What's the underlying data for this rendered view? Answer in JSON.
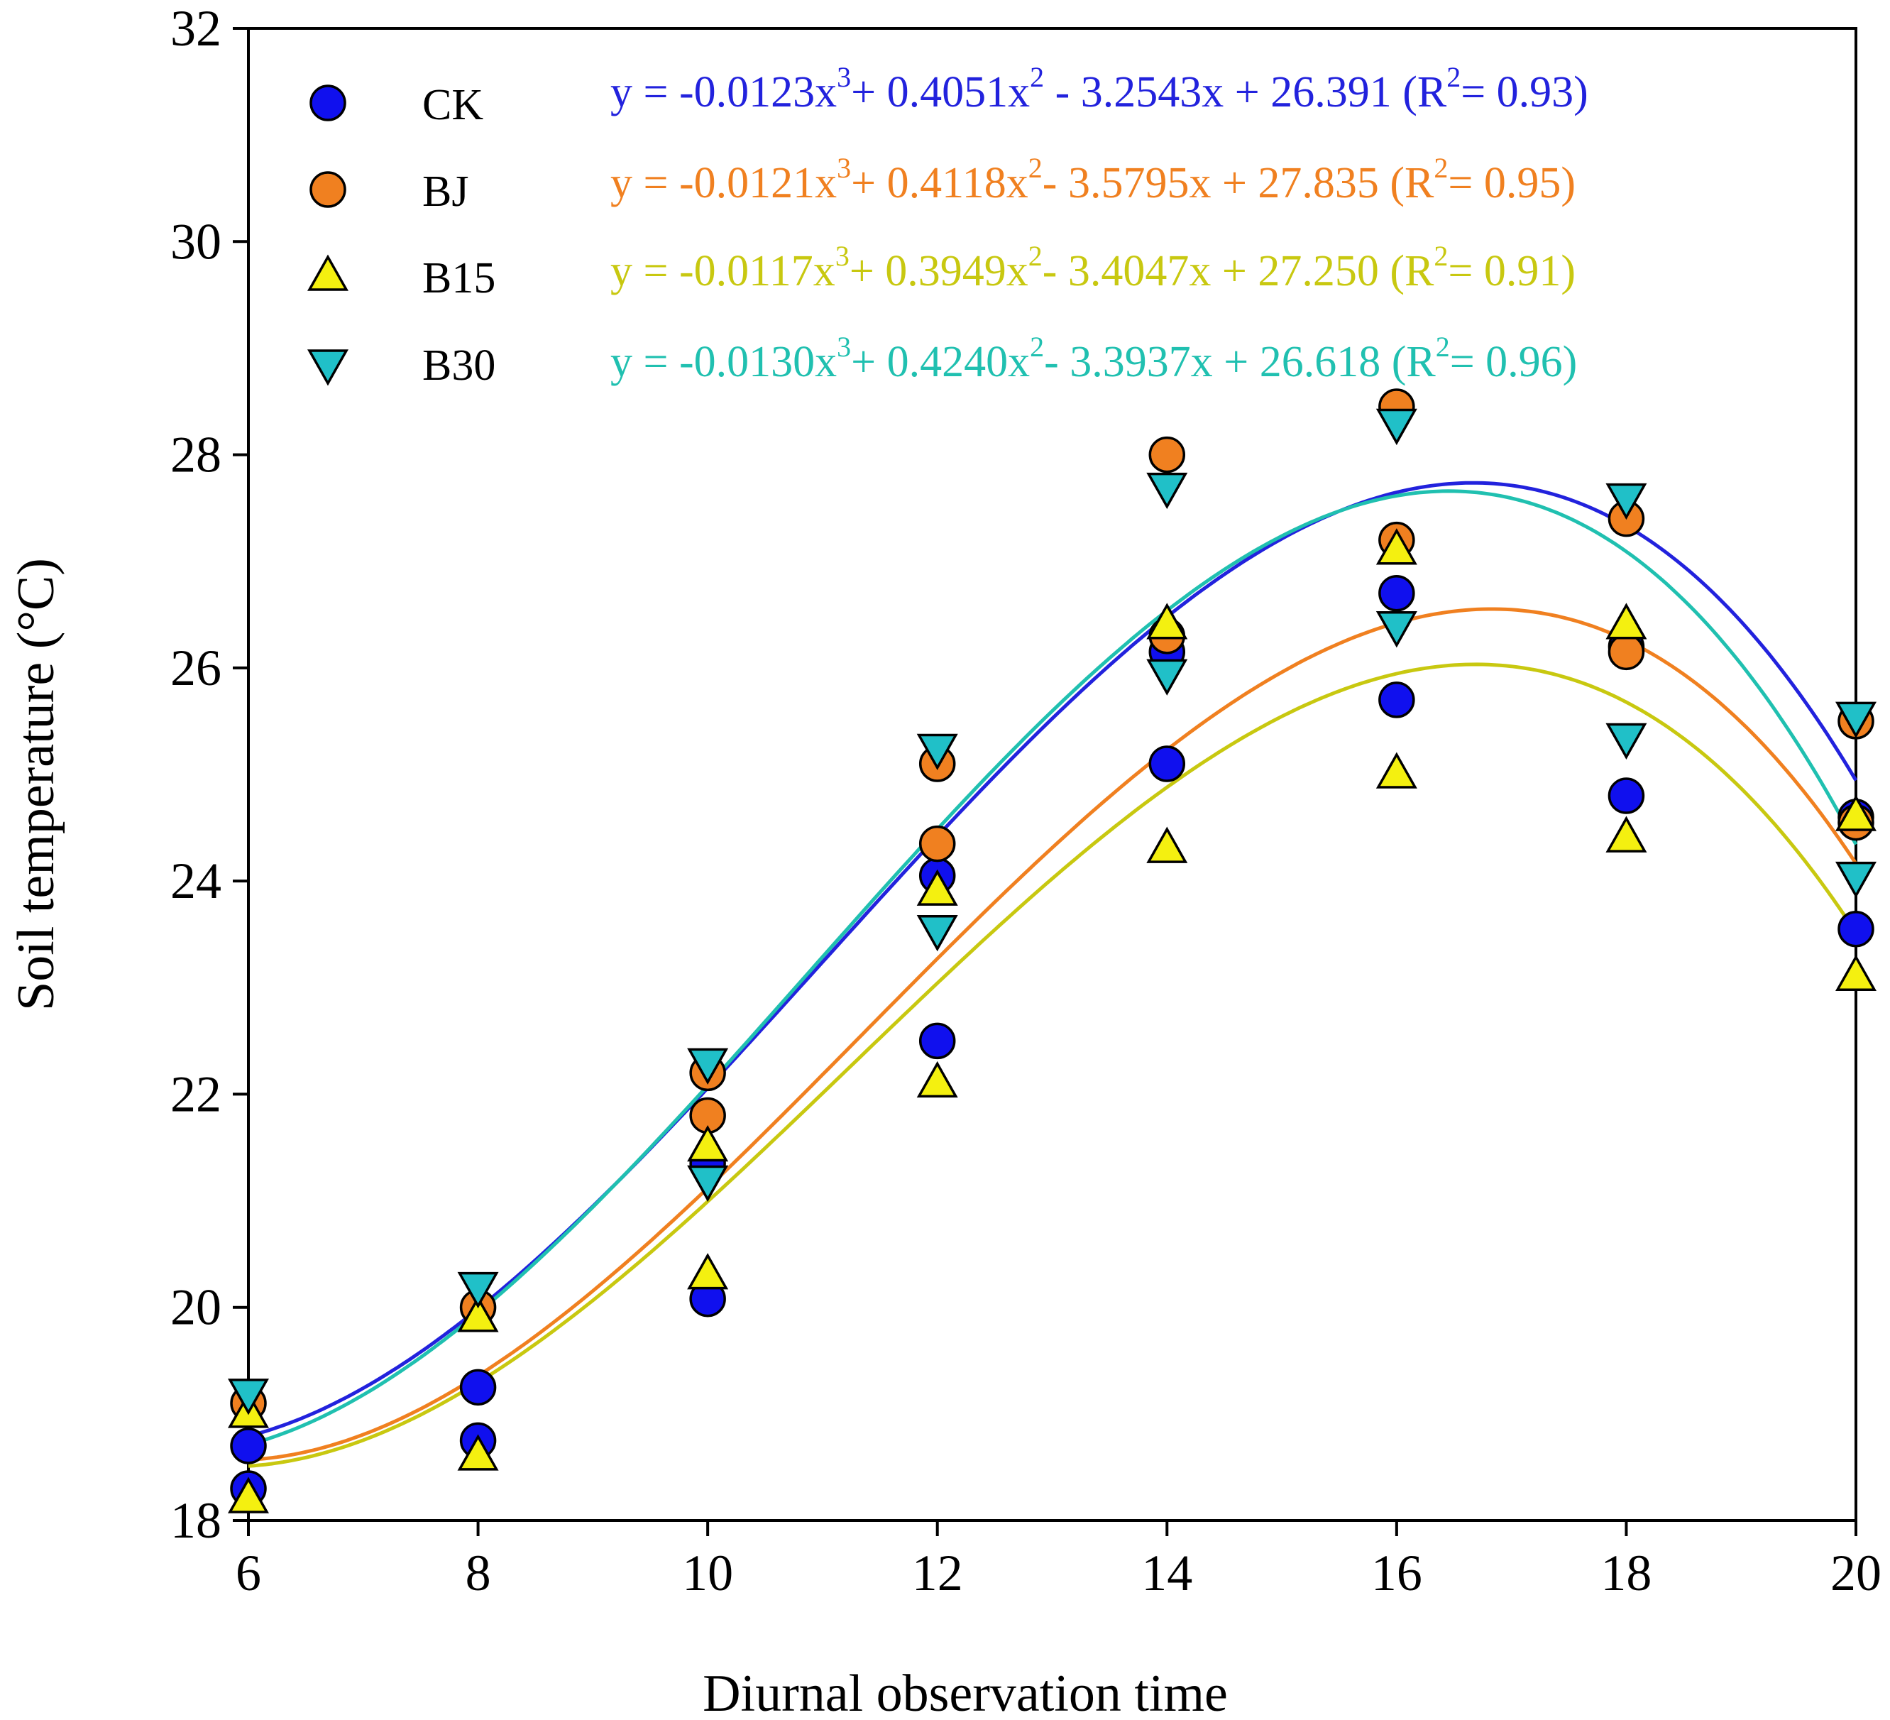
{
  "chart_data": {
    "type": "scatter",
    "title": "",
    "xlabel": "Diurnal observation time",
    "ylabel": "Soil temperature (°C)",
    "xlim": [
      6,
      20
    ],
    "ylim": [
      18,
      32
    ],
    "xticks": [
      "6",
      "8",
      "10",
      "12",
      "14",
      "16",
      "18",
      "20"
    ],
    "yticks": [
      "18",
      "20",
      "22",
      "24",
      "26",
      "28",
      "30",
      "32"
    ],
    "legend_position": "top-left",
    "series": [
      {
        "name": "CK",
        "marker": "circle",
        "color": "#1010ee",
        "line_color": "#2222dd",
        "points": [
          [
            6,
            18.3
          ],
          [
            6,
            18.7
          ],
          [
            8,
            18.75
          ],
          [
            8,
            19.25
          ],
          [
            10,
            20.08
          ],
          [
            10,
            21.35
          ],
          [
            12,
            22.5
          ],
          [
            12,
            24.05
          ],
          [
            14,
            25.1
          ],
          [
            14,
            26.15
          ],
          [
            16,
            25.7
          ],
          [
            16,
            26.7
          ],
          [
            18,
            24.8
          ],
          [
            18,
            26.2
          ],
          [
            20,
            23.55
          ],
          [
            20,
            24.6
          ]
        ],
        "fit": {
          "a": -0.0123,
          "b": 0.4051,
          "c": -3.2543,
          "d": 26.391
        },
        "equation": {
          "lhs": "y = -0.0123x",
          "t1": "+ 0.4051x",
          "t2": " - 3.2543x + 26.391 (R",
          "t3": "= 0.93)"
        }
      },
      {
        "name": "BJ",
        "marker": "circle",
        "color": "#f08020",
        "line_color": "#f08020",
        "points": [
          [
            6,
            19.1
          ],
          [
            8,
            20.0
          ],
          [
            10,
            21.8
          ],
          [
            10,
            22.2
          ],
          [
            12,
            24.35
          ],
          [
            12,
            25.1
          ],
          [
            14,
            26.3
          ],
          [
            14,
            28.0
          ],
          [
            16,
            27.2
          ],
          [
            16,
            28.45
          ],
          [
            18,
            26.15
          ],
          [
            18,
            27.4
          ],
          [
            20,
            24.55
          ],
          [
            20,
            25.5
          ]
        ],
        "fit": {
          "a": -0.0121,
          "b": 0.4118,
          "c": -3.5795,
          "d": 27.835
        },
        "equation": {
          "lhs": "y = -0.0121x",
          "t1": "+ 0.4118x",
          "t2": "- 3.5795x + 27.835  (R",
          "t3": "= 0.95)"
        }
      },
      {
        "name": "B15",
        "marker": "triangle-up",
        "color": "#f4f010",
        "line_color": "#c8c810",
        "points": [
          [
            6,
            18.2
          ],
          [
            6,
            19.0
          ],
          [
            8,
            18.6
          ],
          [
            8,
            19.9
          ],
          [
            10,
            20.3
          ],
          [
            10,
            21.5
          ],
          [
            12,
            22.1
          ],
          [
            12,
            23.9
          ],
          [
            14,
            24.3
          ],
          [
            14,
            26.4
          ],
          [
            16,
            25.0
          ],
          [
            16,
            27.1
          ],
          [
            18,
            24.4
          ],
          [
            18,
            26.4
          ],
          [
            20,
            23.1
          ],
          [
            20,
            24.6
          ]
        ],
        "fit": {
          "a": -0.0117,
          "b": 0.3949,
          "c": -3.4047,
          "d": 27.25
        },
        "equation": {
          "lhs": "y = -0.0117x",
          "t1": "+ 0.3949x",
          "t2": "- 3.4047x + 27.250  (R",
          "t3": "= 0.91)"
        }
      },
      {
        "name": "B30",
        "marker": "triangle-down",
        "color": "#20c0c8",
        "line_color": "#20c0b0",
        "points": [
          [
            6,
            19.2
          ],
          [
            8,
            20.2
          ],
          [
            10,
            21.2
          ],
          [
            10,
            22.3
          ],
          [
            12,
            23.55
          ],
          [
            12,
            25.25
          ],
          [
            14,
            25.95
          ],
          [
            14,
            27.7
          ],
          [
            16,
            26.4
          ],
          [
            16,
            28.3
          ],
          [
            18,
            25.35
          ],
          [
            18,
            27.6
          ],
          [
            20,
            24.05
          ],
          [
            20,
            25.55
          ]
        ],
        "fit": {
          "a": -0.013,
          "b": 0.424,
          "c": -3.3937,
          "d": 26.618
        },
        "equation": {
          "lhs": "y = -0.0130x",
          "t1": "+ 0.4240x",
          "t2": "- 3.3937x + 26.618  (R",
          "t3": "= 0.96)"
        }
      }
    ],
    "superscripts": {
      "cube": "3",
      "square": "2"
    }
  }
}
